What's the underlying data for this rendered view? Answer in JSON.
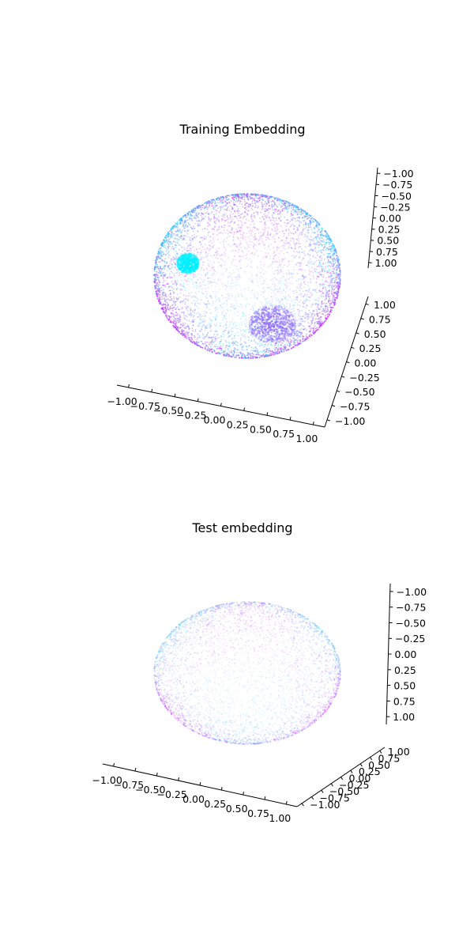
{
  "chart_data": [
    {
      "type": "scatter",
      "projection": "3d",
      "title": "Training Embedding",
      "points_shown": "unit sphere surface",
      "xlim": [
        -1.0,
        1.0
      ],
      "ylim": [
        -1.0,
        1.0
      ],
      "zlim": [
        -1.0,
        1.0
      ],
      "xticks": [
        "−1.00",
        "−0.75",
        "−0.50",
        "−0.25",
        "0.00",
        "0.25",
        "0.50",
        "0.75",
        "1.00"
      ],
      "yticks": [
        "−1.00",
        "−0.75",
        "−0.50",
        "−0.25",
        "0.00",
        "0.25",
        "0.50",
        "0.75",
        "1.00"
      ],
      "zticks": [
        "−1.00",
        "−0.75",
        "−0.50",
        "−0.25",
        "0.00",
        "0.25",
        "0.50",
        "0.75",
        "1.00"
      ],
      "colormap": [
        "#00ffff",
        "#ff00ff"
      ],
      "clusters": [
        {
          "description": "dense cyan cluster",
          "color": "#00f0ff",
          "location": "upper-left"
        },
        {
          "description": "dense violet cluster",
          "color": "#8c6cff",
          "location": "lower-right"
        }
      ],
      "grid": false,
      "legend": "none"
    },
    {
      "type": "scatter",
      "projection": "3d",
      "title": "Test embedding",
      "points_shown": "unit sphere surface",
      "xlim": [
        -1.0,
        1.0
      ],
      "ylim": [
        -1.0,
        1.0
      ],
      "zlim": [
        -1.0,
        1.0
      ],
      "xticks": [
        "−1.00",
        "−0.75",
        "−0.50",
        "−0.25",
        "0.00",
        "0.25",
        "0.50",
        "0.75",
        "1.00"
      ],
      "yticks": [
        "−1.00",
        "−0.75",
        "−0.50",
        "−0.25",
        "0.00",
        "0.25",
        "0.50",
        "0.75",
        "1.00"
      ],
      "zticks": [
        "−1.00",
        "−0.75",
        "−0.50",
        "−0.25",
        "0.00",
        "0.25",
        "0.50",
        "0.75",
        "1.00"
      ],
      "colormap": [
        "#00ffff",
        "#ff00ff"
      ],
      "clusters": [],
      "grid": false,
      "legend": "none"
    }
  ]
}
